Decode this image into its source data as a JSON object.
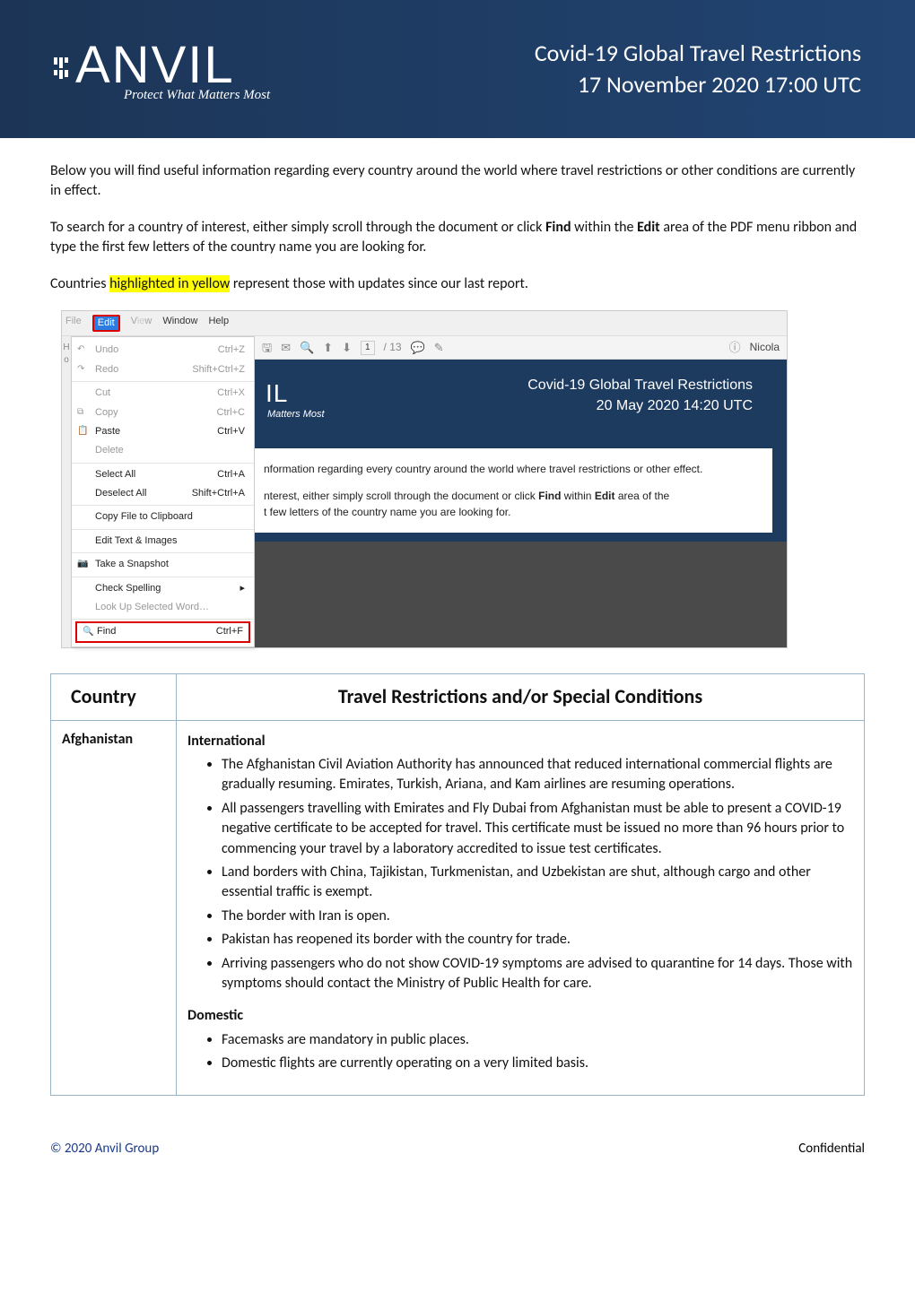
{
  "header": {
    "logo_text": "ANVIL",
    "tagline": "Protect What Matters Most",
    "title_line1": "Covid-19 Global Travel Restrictions",
    "title_line2": "17 November 2020 17:00 UTC"
  },
  "intro": {
    "p1": "Below you will find useful information regarding every country around the world where travel restrictions or other conditions are currently in effect.",
    "p2_a": "To search for a country of interest, either simply scroll through the document or click ",
    "p2_find": "Find",
    "p2_b": " within the ",
    "p2_edit": "Edit",
    "p2_c": " area of the PDF menu ribbon and type the first few letters of the country name you are looking for.",
    "p3_a": "Countries ",
    "p3_hl": "highlighted in yellow",
    "p3_b": " represent those with updates since our last report."
  },
  "pdf_mock": {
    "menubar": {
      "file": "File",
      "edit": "Edit",
      "view": "View",
      "window": "Window",
      "help": "Help"
    },
    "dropdown": {
      "undo": "Undo",
      "undo_k": "Ctrl+Z",
      "redo": "Redo",
      "redo_k": "Shift+Ctrl+Z",
      "cut": "Cut",
      "cut_k": "Ctrl+X",
      "copy": "Copy",
      "copy_k": "Ctrl+C",
      "paste": "Paste",
      "paste_k": "Ctrl+V",
      "delete": "Delete",
      "selectall": "Select All",
      "selectall_k": "Ctrl+A",
      "deselect": "Deselect All",
      "deselect_k": "Shift+Ctrl+A",
      "copyfile": "Copy File to Clipboard",
      "edittext": "Edit Text & Images",
      "snapshot": "Take a Snapshot",
      "spell": "Check Spelling",
      "lookup": "Look Up Selected Word…",
      "find": "Find",
      "find_k": "Ctrl+F"
    },
    "toolbar": {
      "page_current": "1",
      "page_sep": "/ 13",
      "user": "Nicola"
    },
    "preview": {
      "logo_fragment": "IL",
      "tagline_fragment": "Matters Most",
      "title1": "Covid-19 Global Travel Restrictions",
      "title2": "20 May 2020 14:20 UTC",
      "body1": "nformation regarding every country around the world where travel restrictions or other effect.",
      "body2a": "nterest, either simply scroll through the document or click ",
      "body2b": "Find",
      "body2c": " within ",
      "body2d": "Edit",
      "body2e": " area of the",
      "body3": "t few letters of the country name you are looking for."
    }
  },
  "table": {
    "col_country": "Country",
    "col_restrictions": "Travel Restrictions and/or Special Conditions",
    "rows": [
      {
        "country": "Afghanistan",
        "sections": [
          {
            "heading": "International",
            "items": [
              "The Afghanistan Civil Aviation Authority has announced that reduced international commercial flights are gradually resuming. Emirates, Turkish, Ariana, and Kam airlines are resuming operations.",
              "All passengers travelling with Emirates and Fly Dubai from Afghanistan must be able to present a COVID-19 negative certificate to be accepted for travel. This certificate must be issued no more than 96 hours prior to commencing your travel by a laboratory accredited to issue test certificates.",
              "Land borders with China, Tajikistan, Turkmenistan, and Uzbekistan are shut, although cargo and other essential traffic is exempt.",
              "The border with Iran is open.",
              "Pakistan has reopened its border with the country for trade.",
              "Arriving passengers who do not show COVID-19 symptoms are advised to quarantine for 14 days. Those with symptoms should contact the Ministry of Public Health for care."
            ]
          },
          {
            "heading": "Domestic",
            "items": [
              "Facemasks are mandatory in public places.",
              "Domestic flights are currently operating on a very limited basis."
            ]
          }
        ]
      }
    ]
  },
  "footer": {
    "copyright": "© 2020 Anvil Group",
    "confidential": "Confidential"
  },
  "colors": {
    "banner_bg": "#1d3a5f",
    "table_border": "#97b4c9",
    "highlight": "#ffff00",
    "link_blue": "#1d3a8a"
  }
}
